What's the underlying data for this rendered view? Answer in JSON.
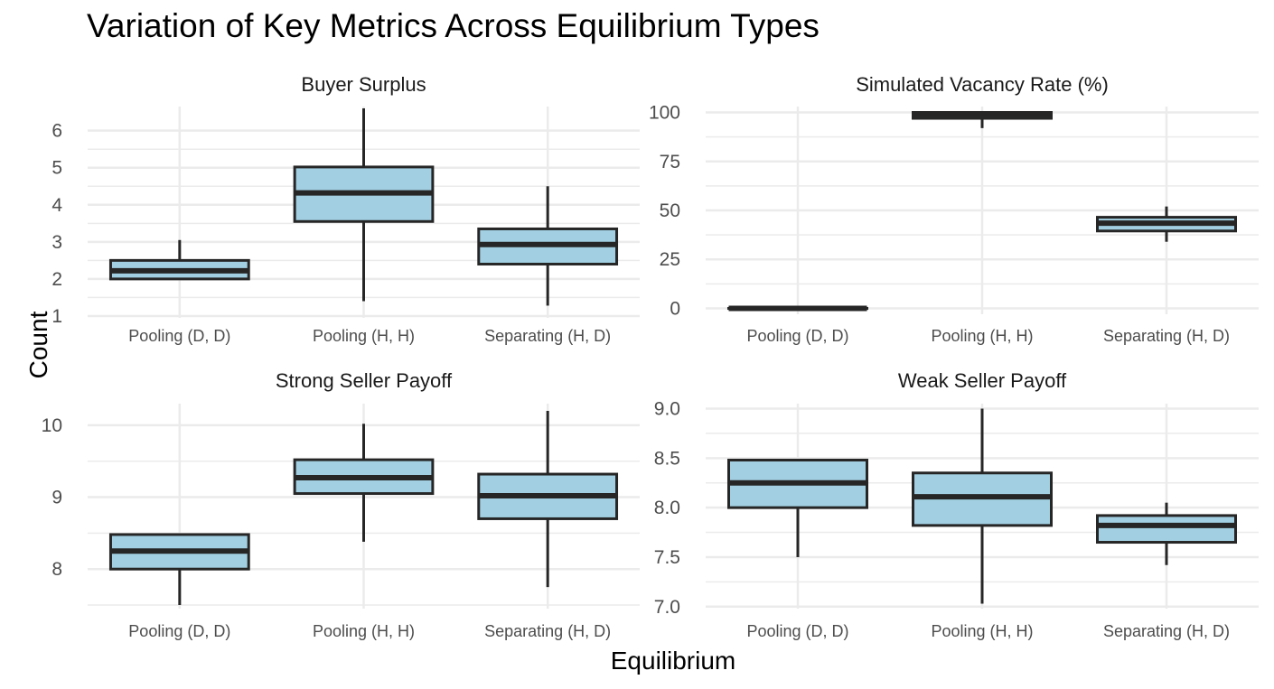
{
  "title": "Variation of Key Metrics Across Equilibrium Types",
  "xlabel": "Equilibrium",
  "ylabel": "Count",
  "colors": {
    "box_fill": "#a2d0e2",
    "box_stroke": "#262626",
    "grid": "#ebebeb"
  },
  "chart_data": [
    {
      "type": "box",
      "panel_title": "Buyer Surplus",
      "categories": [
        "Pooling (D, D)",
        "Pooling (H, H)",
        "Separating (H, D)"
      ],
      "ylim": [
        0.95,
        6.65
      ],
      "yticks": [
        1,
        2,
        3,
        4,
        5,
        6
      ],
      "boxes": [
        {
          "min": 2.0,
          "q1": 2.0,
          "median": 2.22,
          "q3": 2.5,
          "max": 3.05
        },
        {
          "min": 1.4,
          "q1": 3.55,
          "median": 4.32,
          "q3": 5.02,
          "max": 6.6
        },
        {
          "min": 1.28,
          "q1": 2.4,
          "median": 2.93,
          "q3": 3.35,
          "max": 4.5
        }
      ]
    },
    {
      "type": "box",
      "panel_title": "Simulated Vacancy Rate (%)",
      "categories": [
        "Pooling (D, D)",
        "Pooling (H, H)",
        "Separating (H, D)"
      ],
      "ylim": [
        -3,
        103
      ],
      "yticks": [
        0,
        25,
        50,
        75,
        100
      ],
      "boxes": [
        {
          "min": 0,
          "q1": 0,
          "median": 0,
          "q3": 0,
          "max": 0
        },
        {
          "min": 92,
          "q1": 97,
          "median": 99,
          "q3": 100,
          "max": 100
        },
        {
          "min": 34,
          "q1": 39.5,
          "median": 43.5,
          "q3": 46.5,
          "max": 52
        }
      ]
    },
    {
      "type": "box",
      "panel_title": "Strong Seller Payoff",
      "categories": [
        "Pooling (D, D)",
        "Pooling (H, H)",
        "Separating (H, D)"
      ],
      "ylim": [
        7.45,
        10.3
      ],
      "yticks": [
        8,
        9,
        10
      ],
      "boxes": [
        {
          "min": 7.5,
          "q1": 8.0,
          "median": 8.25,
          "q3": 8.48,
          "max": 8.48
        },
        {
          "min": 8.38,
          "q1": 9.05,
          "median": 9.27,
          "q3": 9.52,
          "max": 10.02
        },
        {
          "min": 7.75,
          "q1": 8.7,
          "median": 9.02,
          "q3": 9.32,
          "max": 10.2
        }
      ]
    },
    {
      "type": "box",
      "panel_title": "Weak Seller Payoff",
      "categories": [
        "Pooling (D, D)",
        "Pooling (H, H)",
        "Separating (H, D)"
      ],
      "ylim": [
        6.98,
        9.05
      ],
      "yticks": [
        7.0,
        7.5,
        8.0,
        8.5,
        9.0
      ],
      "yticklabels": [
        "7.0",
        "7.5",
        "8.0",
        "8.5",
        "9.0"
      ],
      "boxes": [
        {
          "min": 7.5,
          "q1": 8.0,
          "median": 8.25,
          "q3": 8.48,
          "max": 8.48
        },
        {
          "min": 7.03,
          "q1": 7.82,
          "median": 8.11,
          "q3": 8.35,
          "max": 9.0
        },
        {
          "min": 7.42,
          "q1": 7.65,
          "median": 7.82,
          "q3": 7.92,
          "max": 8.05
        }
      ]
    }
  ]
}
